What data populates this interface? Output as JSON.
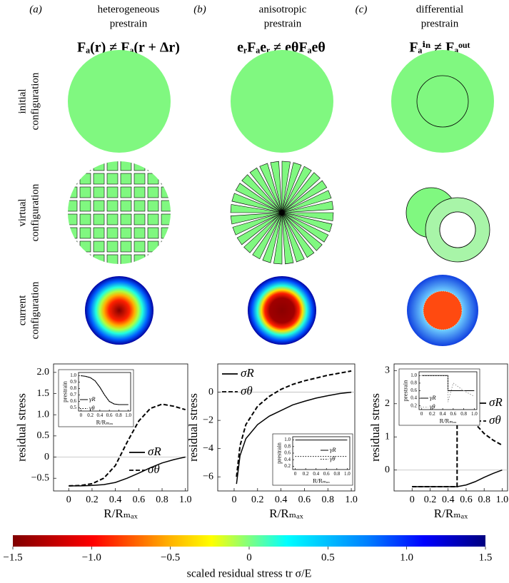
{
  "panels": [
    {
      "label": "(a)",
      "title": [
        "heterogeneous",
        "prestrain"
      ],
      "equation": "Fₐ(r) ≠ Fₐ(r + Δr)"
    },
    {
      "label": "(b)",
      "title": [
        "anisotropic",
        "prestrain"
      ],
      "equation": "eᵣFₐeᵣ ≠ eθFₐeθ"
    },
    {
      "label": "(c)",
      "title": [
        "differential",
        "prestrain"
      ],
      "equation": "Fₐⁱⁿ ≠ Fₐᵒᵘᵗ"
    }
  ],
  "row_labels": [
    [
      "initial",
      "configuration"
    ],
    [
      "virtual",
      "configuration"
    ],
    [
      "current",
      "configuration"
    ]
  ],
  "chart_data": [
    {
      "type": "line",
      "ylabel": "residual stress",
      "xlabel": "R/Rₘₐₓ",
      "xlim": [
        -0.13,
        1.02
      ],
      "ylim": [
        -0.8,
        2.2
      ],
      "xticks": [
        0,
        0.2,
        0.4,
        0.6,
        0.8,
        {
          "value": 1,
          "label": "1.0"
        }
      ],
      "yticks": [
        {
          "value": -0.5,
          "label": "−0.5"
        },
        0,
        0.5,
        {
          "value": 1,
          "label": "1.0"
        },
        1.5,
        {
          "value": 2,
          "label": "2.0"
        }
      ],
      "x": [
        0,
        0.1,
        0.2,
        0.3,
        0.4,
        0.5,
        0.6,
        0.7,
        0.8,
        0.9,
        1.0
      ],
      "series": [
        {
          "name": "σR",
          "color": "#000000",
          "dash": "solid",
          "values": [
            -0.68,
            -0.68,
            -0.67,
            -0.65,
            -0.6,
            -0.5,
            -0.38,
            -0.25,
            -0.14,
            -0.06,
            0
          ]
        },
        {
          "name": "σθ",
          "color": "#000000",
          "dash": "dashed",
          "values": [
            -0.68,
            -0.67,
            -0.63,
            -0.5,
            -0.2,
            0.35,
            0.85,
            1.15,
            1.25,
            1.2,
            1.12
          ]
        }
      ],
      "legend": "lower right",
      "inset": {
        "type": "line",
        "ylabel": "prestrain",
        "xlabel": "R/Rₘₐₓ",
        "xlim": [
          -0.05,
          1.05
        ],
        "ylim": [
          0.45,
          1.05
        ],
        "xticks": [
          0,
          0.2,
          0.4,
          0.6,
          0.8,
          {
            "value": 1,
            "label": "1.0"
          }
        ],
        "yticks": [
          0.5,
          0.6,
          0.7,
          0.8,
          0.9,
          {
            "value": 1,
            "label": "1.0"
          }
        ],
        "x": [
          0,
          0.1,
          0.2,
          0.3,
          0.4,
          0.5,
          0.6,
          0.7,
          0.8,
          0.9,
          1.0
        ],
        "series": [
          {
            "name": "γR",
            "color": "#000000",
            "dash": "solid",
            "values": [
              1,
              0.99,
              0.97,
              0.92,
              0.82,
              0.7,
              0.6,
              0.56,
              0.55,
              0.55,
              0.55
            ]
          },
          {
            "name": "γθ",
            "color": "#000000",
            "dash": "dotted",
            "values": [
              1,
              0.99,
              0.97,
              0.92,
              0.82,
              0.7,
              0.6,
              0.56,
              0.55,
              0.55,
              0.55
            ]
          }
        ],
        "legend": "lower left"
      }
    },
    {
      "type": "line",
      "ylabel": "residual stress",
      "xlabel": "R/Rₘₐₓ",
      "xlim": [
        -0.14,
        1.03
      ],
      "ylim": [
        -7,
        2
      ],
      "xticks": [
        0,
        0.2,
        0.4,
        0.6,
        0.8,
        {
          "value": 1,
          "label": "1.0"
        }
      ],
      "yticks": [
        {
          "value": -6,
          "label": "−6"
        },
        {
          "value": -4,
          "label": "−4"
        },
        {
          "value": -2,
          "label": "−2"
        },
        0
      ],
      "x": [
        0.02,
        0.05,
        0.1,
        0.2,
        0.3,
        0.4,
        0.5,
        0.6,
        0.7,
        0.8,
        0.9,
        1.0
      ],
      "series": [
        {
          "name": "σR",
          "color": "#000000",
          "dash": "solid",
          "values": [
            -6.5,
            -4.5,
            -3.3,
            -2.3,
            -1.7,
            -1.3,
            -0.9,
            -0.65,
            -0.42,
            -0.25,
            -0.1,
            0
          ]
        },
        {
          "name": "σθ",
          "color": "#000000",
          "dash": "dashed",
          "values": [
            -6.0,
            -3.8,
            -2.3,
            -1.0,
            -0.3,
            0.2,
            0.55,
            0.8,
            1.0,
            1.2,
            1.35,
            1.5
          ]
        }
      ],
      "legend": "upper left",
      "inset": {
        "type": "line",
        "ylabel": "prestrain",
        "xlabel": "R/Rₘₐₓ",
        "xlim": [
          -0.05,
          1.05
        ],
        "ylim": [
          0.1,
          1.1
        ],
        "xticks": [
          0,
          0.2,
          0.4,
          0.6,
          0.8,
          {
            "value": 1,
            "label": "1.0"
          }
        ],
        "yticks": [
          0.2,
          0.4,
          0.6,
          0.8,
          {
            "value": 1,
            "label": "1.0"
          }
        ],
        "x": [
          0,
          1.0
        ],
        "series": [
          {
            "name": "γR",
            "color": "#000000",
            "dash": "solid",
            "values": [
              1,
              1
            ]
          },
          {
            "name": "γθ",
            "color": "#000000",
            "dash": "dotted",
            "values": [
              0.5,
              0.5
            ]
          }
        ],
        "legend": "lower right"
      }
    },
    {
      "type": "line",
      "ylabel": "residual stress",
      "xlabel": "R/Rₘₐₓ",
      "xlim": [
        -0.2,
        1.06
      ],
      "ylim": [
        -0.63,
        3.2
      ],
      "xticks": [
        0,
        0.2,
        0.4,
        0.6,
        0.8,
        {
          "value": 1,
          "label": "1.0"
        }
      ],
      "yticks": [
        0,
        1,
        2,
        3
      ],
      "x": [
        0,
        0.5,
        0.5,
        0.6,
        0.7,
        0.8,
        0.9,
        1.0
      ],
      "series": [
        {
          "name": "σR",
          "color": "#000000",
          "dash": "solid",
          "values": [
            -0.5,
            -0.5,
            -0.5,
            -0.45,
            -0.35,
            -0.22,
            -0.1,
            0
          ]
        },
        {
          "name": "σθ",
          "color": "#000000",
          "dash": "dashed",
          "values": [
            -0.5,
            -0.5,
            2.25,
            1.75,
            1.4,
            1.1,
            0.9,
            0.75
          ]
        }
      ],
      "legend": "center right",
      "inset": {
        "type": "line",
        "ylabel": "prestrain",
        "xlabel": "R/Rₘₐₓ",
        "xlim": [
          -0.05,
          1.05
        ],
        "ylim": [
          0.1,
          1.1
        ],
        "xticks": [
          0,
          0.2,
          0.4,
          0.6,
          0.8,
          {
            "value": 1,
            "label": "1.0"
          }
        ],
        "yticks": [
          0.2,
          0.4,
          0.6,
          0.8,
          {
            "value": 1,
            "label": "1.0"
          }
        ],
        "x": [
          0,
          0.5,
          0.5,
          0.6,
          0.8,
          1.0
        ],
        "series": [
          {
            "name": "γR",
            "color": "#000000",
            "dash": "solid",
            "values": [
              1,
              1,
              0.6,
              0.6,
              0.6,
              0.6
            ]
          },
          {
            "name": "γθ",
            "color": "#999999",
            "dash": "dotted",
            "values": [
              1,
              1,
              0.3,
              0.8,
              0.6,
              0.45
            ]
          }
        ],
        "legend": "lower left"
      }
    }
  ],
  "colorbar": {
    "label": "scaled residual stress tr σ/E",
    "lim": [
      -1.5,
      1.5
    ],
    "ticks": [
      {
        "value": -1.5,
        "label": "−1.5"
      },
      {
        "value": -1,
        "label": "−1.0"
      },
      {
        "value": -0.5,
        "label": "−0.5"
      },
      0,
      0.5,
      {
        "value": 1,
        "label": "1.0"
      },
      1.5
    ]
  }
}
